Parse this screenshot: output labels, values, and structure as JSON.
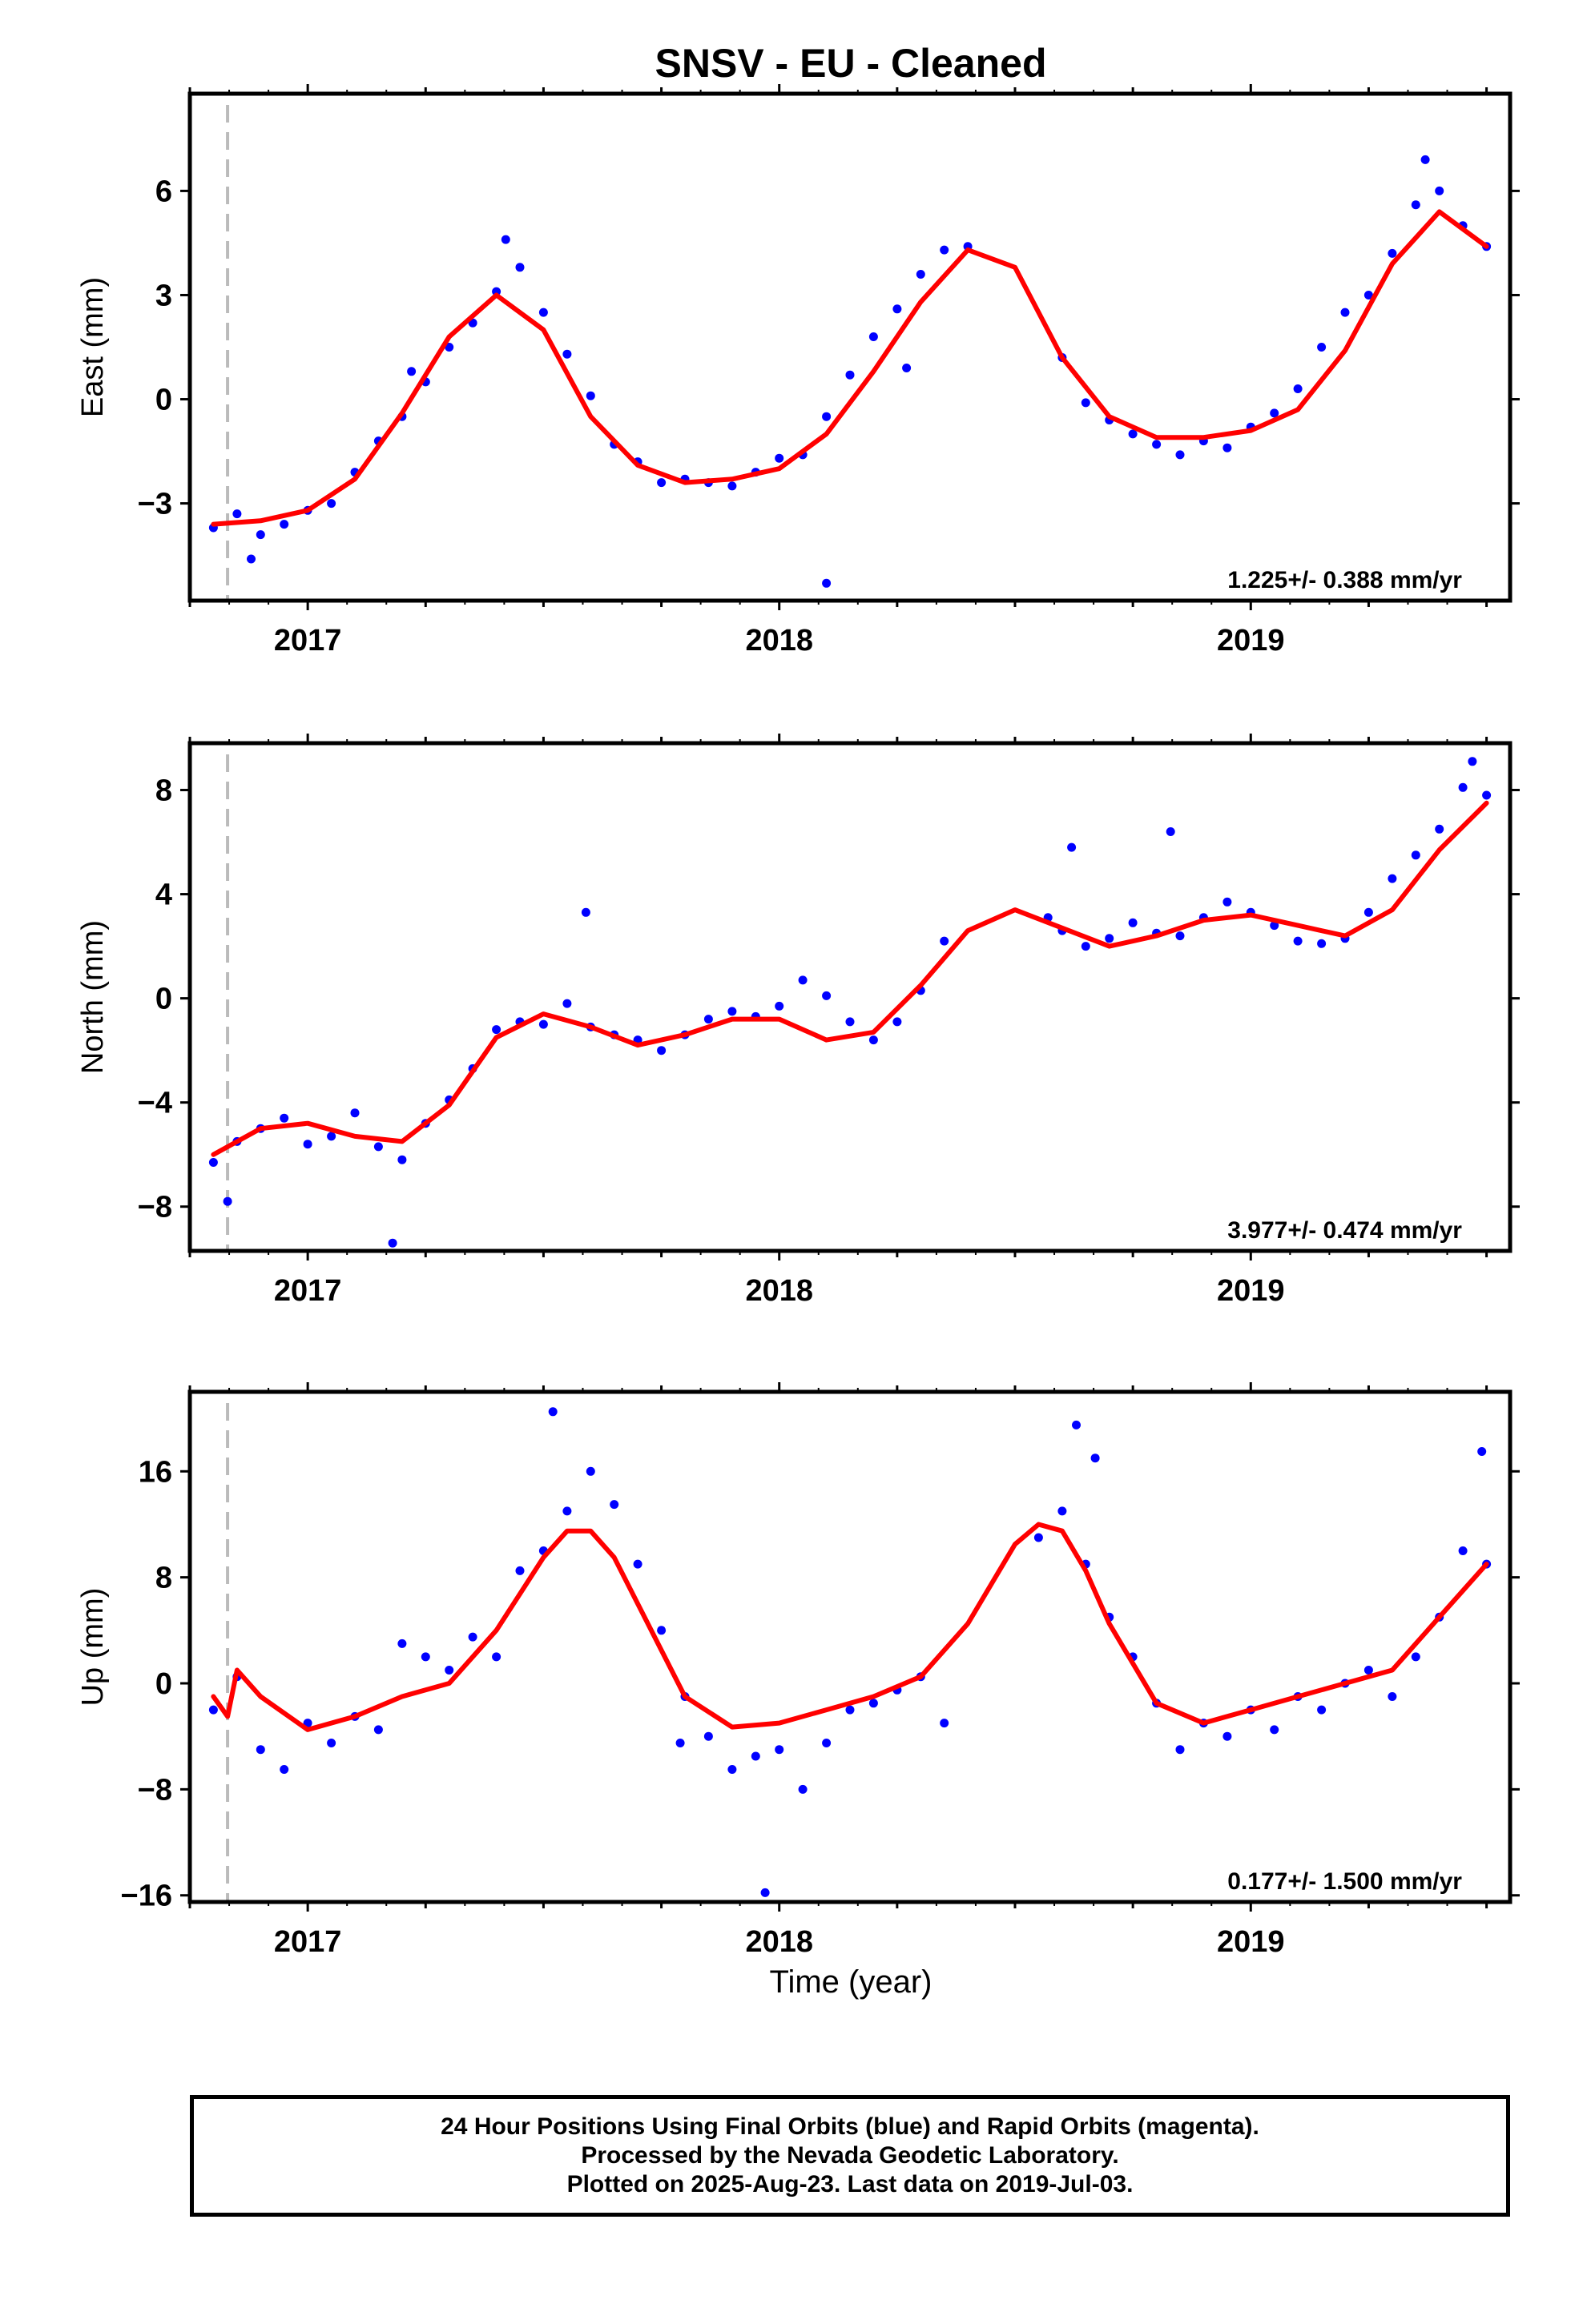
{
  "title": "SNSV  - EU - Cleaned",
  "colors": {
    "final_orbits": "#0000ff",
    "fit_line": "#ff0000",
    "epoch_marker": "#bbbbbb",
    "frame": "#000000"
  },
  "x_axis": {
    "label": "Time (year)",
    "range": [
      2016.75,
      2019.55
    ],
    "major_ticks": [
      2017,
      2018,
      2019
    ],
    "tick_labels": [
      "2017",
      "2018",
      "2019"
    ]
  },
  "footer": {
    "lines": [
      "24 Hour Positions Using Final Orbits (blue) and Rapid Orbits (magenta).",
      "Processed by the Nevada Geodetic Laboratory.",
      "Plotted on 2025-Aug-23. Last data on 2019-Jul-03."
    ]
  },
  "chart_data": [
    {
      "type": "scatter",
      "component": "east",
      "ylabel": "East (mm)",
      "ylim": [
        -5.8,
        8.8
      ],
      "yticks": [
        -3,
        0,
        3,
        6
      ],
      "yticklabels": [
        "−3",
        "0",
        "3",
        "6"
      ],
      "rate_annotation": "1.225+/- 0.388 mm/yr",
      "epoch_marker_x": 2016.83,
      "series": [
        {
          "name": "Final Orbits",
          "style": "points",
          "x": [
            2016.8,
            2016.85,
            2016.9,
            2016.95,
            2017.0,
            2017.05,
            2017.1,
            2017.15,
            2017.2,
            2017.25,
            2017.3,
            2017.35,
            2017.4,
            2017.45,
            2017.5,
            2017.55,
            2017.6,
            2017.65,
            2017.7,
            2017.75,
            2017.8,
            2017.85,
            2017.9,
            2017.95,
            2018.0,
            2018.05,
            2018.1,
            2018.15,
            2018.2,
            2018.25,
            2018.3,
            2018.35,
            2018.4,
            2018.6,
            2018.65,
            2018.7,
            2018.75,
            2018.8,
            2018.85,
            2018.9,
            2018.95,
            2019.0,
            2019.05,
            2019.1,
            2019.15,
            2019.2,
            2019.25,
            2019.3,
            2019.35,
            2019.4,
            2019.45,
            2019.5,
            2016.88,
            2017.22,
            2017.42,
            2018.27,
            2019.37,
            2018.1
          ],
          "y": [
            -3.7,
            -3.3,
            -3.9,
            -3.6,
            -3.2,
            -3.0,
            -2.1,
            -1.2,
            -0.5,
            0.5,
            1.5,
            2.2,
            3.1,
            3.8,
            2.5,
            1.3,
            0.1,
            -1.3,
            -1.8,
            -2.4,
            -2.3,
            -2.4,
            -2.5,
            -2.1,
            -1.7,
            -1.6,
            -0.5,
            0.7,
            1.8,
            2.6,
            3.6,
            4.3,
            4.4,
            1.2,
            -0.1,
            -0.6,
            -1.0,
            -1.3,
            -1.6,
            -1.2,
            -1.4,
            -0.8,
            -0.4,
            0.3,
            1.5,
            2.5,
            3.0,
            4.2,
            5.6,
            6.0,
            5.0,
            4.4,
            -4.6,
            0.8,
            4.6,
            0.9,
            6.9,
            -5.3
          ]
        },
        {
          "name": "Model fit",
          "style": "line",
          "x": [
            2016.8,
            2016.9,
            2017.0,
            2017.1,
            2017.2,
            2017.3,
            2017.4,
            2017.5,
            2017.6,
            2017.7,
            2017.8,
            2017.9,
            2018.0,
            2018.1,
            2018.2,
            2018.3,
            2018.4,
            2018.5,
            2018.6,
            2018.7,
            2018.8,
            2018.9,
            2019.0,
            2019.1,
            2019.2,
            2019.3,
            2019.4,
            2019.5
          ],
          "y": [
            -3.6,
            -3.5,
            -3.2,
            -2.3,
            -0.4,
            1.8,
            3.0,
            2.0,
            -0.5,
            -1.9,
            -2.4,
            -2.3,
            -2.0,
            -1.0,
            0.8,
            2.8,
            4.3,
            3.8,
            1.2,
            -0.5,
            -1.1,
            -1.1,
            -0.9,
            -0.3,
            1.4,
            3.9,
            5.4,
            4.4
          ]
        }
      ]
    },
    {
      "type": "scatter",
      "component": "north",
      "ylabel": "North (mm)",
      "ylim": [
        -9.7,
        9.8
      ],
      "yticks": [
        -8,
        -4,
        0,
        4,
        8
      ],
      "yticklabels": [
        "−8",
        "−4",
        "0",
        "4",
        "8"
      ],
      "rate_annotation": "3.977+/- 0.474 mm/yr",
      "epoch_marker_x": 2016.83,
      "series": [
        {
          "name": "Final Orbits",
          "style": "points",
          "x": [
            2016.8,
            2016.85,
            2016.9,
            2016.95,
            2017.0,
            2017.05,
            2017.1,
            2017.15,
            2017.2,
            2017.25,
            2017.3,
            2017.35,
            2017.4,
            2017.45,
            2017.5,
            2017.55,
            2017.6,
            2017.65,
            2017.7,
            2017.75,
            2017.8,
            2017.85,
            2017.9,
            2017.95,
            2018.0,
            2018.05,
            2018.1,
            2018.15,
            2018.2,
            2018.25,
            2018.3,
            2018.35,
            2018.57,
            2018.6,
            2018.65,
            2018.7,
            2018.75,
            2018.8,
            2018.85,
            2018.9,
            2018.95,
            2019.0,
            2019.05,
            2019.1,
            2019.15,
            2019.2,
            2019.25,
            2019.3,
            2019.35,
            2019.4,
            2019.45,
            2019.5,
            2017.18,
            2017.59,
            2018.62,
            2018.83,
            2019.47,
            2016.83
          ],
          "y": [
            -6.3,
            -5.5,
            -5.0,
            -4.6,
            -5.6,
            -5.3,
            -4.4,
            -5.7,
            -6.2,
            -4.8,
            -3.9,
            -2.7,
            -1.2,
            -0.9,
            -1.0,
            -0.2,
            -1.1,
            -1.4,
            -1.6,
            -2.0,
            -1.4,
            -0.8,
            -0.5,
            -0.7,
            -0.3,
            0.7,
            0.1,
            -0.9,
            -1.6,
            -0.9,
            0.3,
            2.2,
            3.1,
            2.6,
            2.0,
            2.3,
            2.9,
            2.5,
            2.4,
            3.1,
            3.7,
            3.3,
            2.8,
            2.2,
            2.1,
            2.3,
            3.3,
            4.6,
            5.5,
            6.5,
            8.1,
            7.8,
            -9.4,
            3.3,
            5.8,
            6.4,
            9.1,
            -7.8
          ]
        },
        {
          "name": "Model fit",
          "style": "line",
          "x": [
            2016.8,
            2016.9,
            2017.0,
            2017.1,
            2017.2,
            2017.3,
            2017.4,
            2017.5,
            2017.6,
            2017.7,
            2017.8,
            2017.9,
            2018.0,
            2018.1,
            2018.2,
            2018.3,
            2018.4,
            2018.5,
            2018.6,
            2018.7,
            2018.8,
            2018.9,
            2019.0,
            2019.1,
            2019.2,
            2019.3,
            2019.4,
            2019.5
          ],
          "y": [
            -6.0,
            -5.0,
            -4.8,
            -5.3,
            -5.5,
            -4.1,
            -1.5,
            -0.6,
            -1.1,
            -1.8,
            -1.4,
            -0.8,
            -0.8,
            -1.6,
            -1.3,
            0.5,
            2.6,
            3.4,
            2.7,
            2.0,
            2.4,
            3.0,
            3.2,
            2.8,
            2.4,
            3.4,
            5.7,
            7.5
          ]
        }
      ]
    },
    {
      "type": "scatter",
      "component": "up",
      "ylabel": "Up (mm)",
      "ylim": [
        -16.5,
        22
      ],
      "yticks": [
        -16,
        -8,
        0,
        8,
        16
      ],
      "yticklabels": [
        "−16",
        "−8",
        "0",
        "8",
        "16"
      ],
      "rate_annotation": "0.177+/- 1.500 mm/yr",
      "epoch_marker_x": 2016.83,
      "series": [
        {
          "name": "Final Orbits",
          "style": "points",
          "x": [
            2016.8,
            2016.85,
            2016.9,
            2016.95,
            2017.0,
            2017.05,
            2017.1,
            2017.15,
            2017.2,
            2017.25,
            2017.3,
            2017.35,
            2017.4,
            2017.45,
            2017.5,
            2017.55,
            2017.6,
            2017.65,
            2017.7,
            2017.75,
            2017.8,
            2017.85,
            2017.9,
            2017.95,
            2018.0,
            2018.05,
            2018.1,
            2018.15,
            2018.2,
            2018.25,
            2018.3,
            2018.35,
            2018.55,
            2018.6,
            2018.65,
            2018.7,
            2018.75,
            2018.8,
            2018.85,
            2018.9,
            2018.95,
            2019.0,
            2019.05,
            2019.1,
            2019.15,
            2019.2,
            2019.25,
            2019.3,
            2019.35,
            2019.4,
            2019.45,
            2019.5,
            2017.52,
            2017.79,
            2018.63,
            2018.67,
            2019.49,
            2017.97
          ],
          "y": [
            -2.0,
            0.5,
            -5.0,
            -6.5,
            -3.0,
            -4.5,
            -2.5,
            -3.5,
            3.0,
            2.0,
            1.0,
            3.5,
            2.0,
            8.5,
            10.0,
            13.0,
            16.0,
            13.5,
            9.0,
            4.0,
            -1.0,
            -4.0,
            -6.5,
            -5.5,
            -5.0,
            -8.0,
            -4.5,
            -2.0,
            -1.5,
            -0.5,
            0.5,
            -3.0,
            11.0,
            13.0,
            9.0,
            5.0,
            2.0,
            -1.5,
            -5.0,
            -3.0,
            -4.0,
            -2.0,
            -3.5,
            -1.0,
            -2.0,
            0.0,
            1.0,
            -1.0,
            2.0,
            5.0,
            10.0,
            9.0,
            20.5,
            -4.5,
            19.5,
            17.0,
            17.5,
            -15.8
          ]
        },
        {
          "name": "Model fit",
          "style": "line",
          "x": [
            2016.8,
            2016.83,
            2016.85,
            2016.9,
            2017.0,
            2017.1,
            2017.2,
            2017.3,
            2017.4,
            2017.5,
            2017.55,
            2017.6,
            2017.65,
            2017.7,
            2017.8,
            2017.9,
            2018.0,
            2018.1,
            2018.2,
            2018.3,
            2018.4,
            2018.5,
            2018.55,
            2018.6,
            2018.65,
            2018.7,
            2018.8,
            2018.9,
            2019.0,
            2019.1,
            2019.2,
            2019.3,
            2019.4,
            2019.5
          ],
          "y": [
            -1.0,
            -2.5,
            1.0,
            -1.0,
            -3.5,
            -2.5,
            -1.0,
            0.0,
            4.0,
            9.5,
            11.5,
            11.5,
            9.5,
            6.0,
            -1.0,
            -3.3,
            -3.0,
            -2.0,
            -1.0,
            0.5,
            4.5,
            10.5,
            12.0,
            11.5,
            8.5,
            4.5,
            -1.5,
            -3.0,
            -2.0,
            -1.0,
            0.0,
            1.0,
            5.0,
            9.0
          ]
        }
      ]
    }
  ]
}
